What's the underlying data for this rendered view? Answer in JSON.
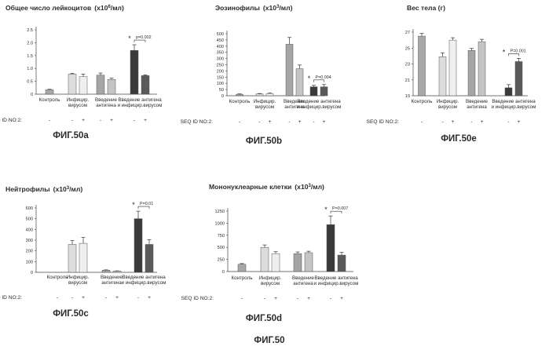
{
  "figure_label": "ФИГ.50",
  "chart_data": [
    {
      "type": "bar",
      "panel_label": "ФИГ.50a",
      "title": "Общее число лейкоцитов",
      "title_unit_base": "(x10",
      "title_unit_exp": "6",
      "title_unit_tail": "/мл)",
      "yticks": [
        "0",
        "0.5",
        "1.0",
        "1.5",
        "2.0",
        "2.5"
      ],
      "ylim": [
        0,
        2.5
      ],
      "categories": [
        "Контроль",
        "Инфицир. вирусом",
        "Введение антигена",
        "Введение антигена и инфицир.вирусом"
      ],
      "bars": [
        {
          "group": 0,
          "value": 0.17,
          "error": 0.02,
          "shade": "#a8a8a8"
        },
        {
          "group": 1,
          "value": 0.78,
          "error": 0.03,
          "shade": "#dcdcdc"
        },
        {
          "group": 1,
          "value": 0.68,
          "error": 0.1,
          "shade": "#efefef"
        },
        {
          "group": 2,
          "value": 0.74,
          "error": 0.08,
          "shade": "#a5a5a5"
        },
        {
          "group": 2,
          "value": 0.57,
          "error": 0.05,
          "shade": "#c5c5c5"
        },
        {
          "group": 3,
          "value": 1.7,
          "error": 0.22,
          "shade": "#3a3a3a"
        },
        {
          "group": 3,
          "value": 0.72,
          "error": 0.03,
          "shade": "#5a5a5a"
        }
      ],
      "seq_label": "SEQ ID NO:2:",
      "seq_marks": [
        "-",
        "-",
        "+",
        "-",
        "+",
        "-",
        "+"
      ],
      "significance": "p=0.002"
    },
    {
      "type": "bar",
      "panel_label": "ФИГ.50b",
      "title": "Эозинофилы",
      "title_unit_base": "(x10",
      "title_unit_exp": "3",
      "title_unit_tail": "/мл)",
      "yticks": [
        "0",
        "50",
        "100",
        "150",
        "200",
        "250",
        "300",
        "350",
        "400",
        "450",
        "500"
      ],
      "ylim": [
        0,
        500
      ],
      "categories": [
        "Контроль",
        "Инфицир. вирусом",
        "Введение антигена",
        "Введение антигена и инфицир.вирусом"
      ],
      "bars": [
        {
          "group": 0,
          "value": 12,
          "error": 3,
          "shade": "#a8a8a8"
        },
        {
          "group": 1,
          "value": 15,
          "error": 3,
          "shade": "#dcdcdc"
        },
        {
          "group": 1,
          "value": 18,
          "error": 4,
          "shade": "#efefef"
        },
        {
          "group": 2,
          "value": 415,
          "error": 55,
          "shade": "#a5a5a5"
        },
        {
          "group": 2,
          "value": 218,
          "error": 30,
          "shade": "#c5c5c5"
        },
        {
          "group": 3,
          "value": 72,
          "error": 12,
          "shade": "#3a3a3a"
        },
        {
          "group": 3,
          "value": 72,
          "error": 18,
          "shade": "#5a5a5a"
        }
      ],
      "seq_label": "SEQ ID NO:2:",
      "seq_marks": [
        "-",
        "-",
        "+",
        "-",
        "+",
        "-",
        "+"
      ],
      "significance": "P=0.004"
    },
    {
      "type": "bar",
      "panel_label": "ФИГ.50e",
      "title": "Вес тела (г)",
      "title_unit_base": "",
      "title_unit_exp": "",
      "title_unit_tail": "",
      "yticks": [
        "19",
        "21",
        "23",
        "25",
        "27"
      ],
      "ylim": [
        19,
        27
      ],
      "categories": [
        "Контроль",
        "Инфицир. вирусом",
        "Введение антигена",
        "Введение антигена и инфицир.вирусом"
      ],
      "bars": [
        {
          "group": 0,
          "value": 26.5,
          "error": 0.35,
          "shade": "#a8a8a8"
        },
        {
          "group": 1,
          "value": 23.9,
          "error": 0.5,
          "shade": "#dcdcdc"
        },
        {
          "group": 1,
          "value": 26.0,
          "error": 0.3,
          "shade": "#efefef"
        },
        {
          "group": 2,
          "value": 24.7,
          "error": 0.25,
          "shade": "#a5a5a5"
        },
        {
          "group": 2,
          "value": 25.8,
          "error": 0.3,
          "shade": "#c5c5c5"
        },
        {
          "group": 3,
          "value": 20.0,
          "error": 0.4,
          "shade": "#3a3a3a"
        },
        {
          "group": 3,
          "value": 23.3,
          "error": 0.4,
          "shade": "#5a5a5a"
        }
      ],
      "seq_label": "SEQ ID NO:2:",
      "seq_marks": [
        "-",
        "-",
        "+",
        "-",
        "+",
        "-",
        "+"
      ],
      "significance": "P=0.001"
    },
    {
      "type": "bar",
      "panel_label": "ФИГ.50c",
      "title": "Нейтрофилы",
      "title_unit_base": "(x10",
      "title_unit_exp": "3",
      "title_unit_tail": "/мл)",
      "yticks": [
        "0",
        "100",
        "200",
        "300",
        "400",
        "500",
        "600"
      ],
      "ylim": [
        0,
        600
      ],
      "categories": [
        "Контроль",
        "Инфицир. вирусом",
        "Введение антигена",
        "Введение антигена и инфицир.вирусом"
      ],
      "bars": [
        {
          "group": 0,
          "value": 0,
          "error": 0,
          "shade": "#a8a8a8"
        },
        {
          "group": 1,
          "value": 260,
          "error": 35,
          "shade": "#dcdcdc"
        },
        {
          "group": 1,
          "value": 270,
          "error": 55,
          "shade": "#efefef"
        },
        {
          "group": 2,
          "value": 20,
          "error": 3,
          "shade": "#a5a5a5"
        },
        {
          "group": 2,
          "value": 12,
          "error": 2,
          "shade": "#c5c5c5"
        },
        {
          "group": 3,
          "value": 500,
          "error": 70,
          "shade": "#3a3a3a"
        },
        {
          "group": 3,
          "value": 260,
          "error": 45,
          "shade": "#5a5a5a"
        }
      ],
      "seq_label": "SEQ ID NO:2:",
      "seq_marks": [
        "-",
        "-",
        "+",
        "-",
        "+",
        "-",
        "+"
      ],
      "significance": "P=0.01"
    },
    {
      "type": "bar",
      "panel_label": "ФИГ.50d",
      "title": "Мононуклеарные клетки",
      "title_unit_base": "(x10",
      "title_unit_exp": "3",
      "title_unit_tail": "/мл)",
      "yticks": [
        "0",
        "250",
        "500",
        "750",
        "1000",
        "1250"
      ],
      "ylim": [
        0,
        1250
      ],
      "categories": [
        "Контроль",
        "Инфицир. вирусом",
        "Введение антигена",
        "Введение антигена и инфицир.вирусом"
      ],
      "bars": [
        {
          "group": 0,
          "value": 150,
          "error": 15,
          "shade": "#a8a8a8"
        },
        {
          "group": 1,
          "value": 500,
          "error": 50,
          "shade": "#dcdcdc"
        },
        {
          "group": 1,
          "value": 370,
          "error": 40,
          "shade": "#efefef"
        },
        {
          "group": 2,
          "value": 370,
          "error": 35,
          "shade": "#a5a5a5"
        },
        {
          "group": 2,
          "value": 390,
          "error": 30,
          "shade": "#c5c5c5"
        },
        {
          "group": 3,
          "value": 970,
          "error": 180,
          "shade": "#3a3a3a"
        },
        {
          "group": 3,
          "value": 340,
          "error": 55,
          "shade": "#5a5a5a"
        }
      ],
      "seq_label": "SEQ ID NO:2:",
      "seq_marks": [
        "-",
        "-",
        "+",
        "-",
        "+",
        "-",
        "+"
      ],
      "significance": "P=0.007"
    }
  ]
}
